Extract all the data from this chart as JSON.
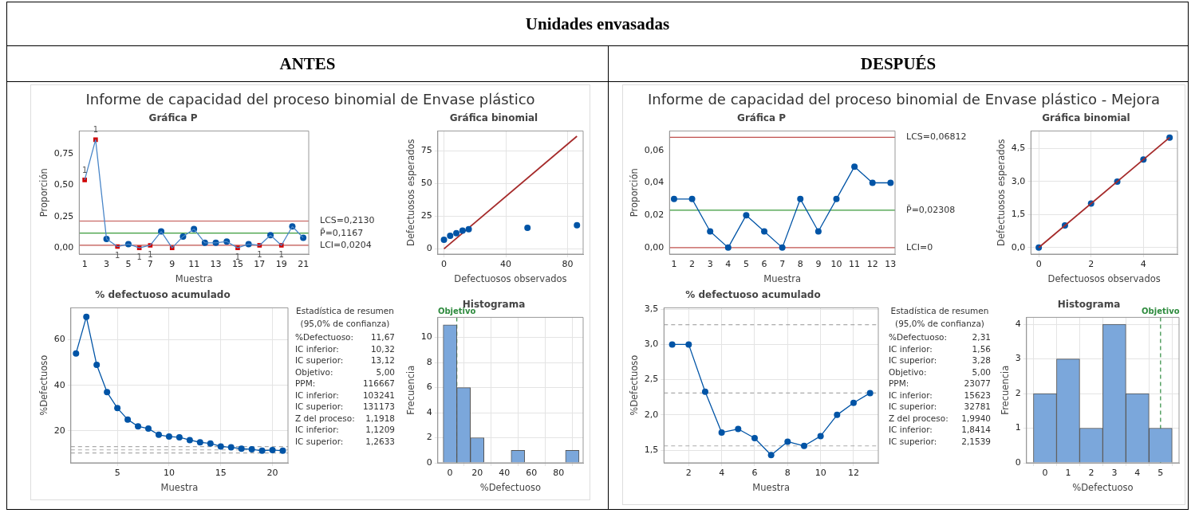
{
  "chart_data": [
    {
      "type": "other",
      "title": "Unidades envasadas",
      "annotations": [
        "ANTES",
        "DESPUÉS",
        "Informe de capacidad del proceso binomial de Envase plástico",
        "Informe de capacidad del proceso binomial de Envase plástico - Mejora"
      ]
    },
    {
      "type": "line",
      "title": "Gráfica P",
      "xlabel": "Muestra",
      "ylabel": "Proporción",
      "x": [
        1,
        2,
        3,
        4,
        5,
        6,
        7,
        8,
        9,
        10,
        11,
        12,
        13,
        14,
        15,
        16,
        17,
        18,
        19,
        20,
        21
      ],
      "series": [
        {
          "color": "#4a86c8",
          "marker": "none",
          "values": [
            0.54,
            0.86,
            0.07,
            0.01,
            0.03,
            0,
            0.02,
            0.13,
            0,
            0.09,
            0.15,
            0.04,
            0.04,
            0.05,
            0,
            0.03,
            0.02,
            0.1,
            0.02,
            0.17,
            0.08
          ]
        },
        {
          "type": "scatter",
          "color": "#0054a6",
          "marker": "circle",
          "x": [
            3,
            5,
            8,
            10,
            11,
            12,
            13,
            14,
            16,
            18,
            20,
            21
          ],
          "values": [
            0.07,
            0.03,
            0.13,
            0.09,
            0.15,
            0.04,
            0.04,
            0.05,
            0.03,
            0.1,
            0.17,
            0.08
          ]
        },
        {
          "type": "scatter",
          "color": "#d00000",
          "marker": "square",
          "x": [
            1,
            2,
            4,
            6,
            7,
            9,
            15,
            17,
            19
          ],
          "values": [
            0.54,
            0.86,
            0.01,
            0,
            0.02,
            0,
            0,
            0.02,
            0.02
          ]
        }
      ],
      "xlim": [
        0.5,
        21.5
      ],
      "xticks": [
        1,
        3,
        5,
        7,
        9,
        11,
        13,
        15,
        17,
        19,
        21
      ],
      "ylim": [
        -0.05,
        0.93
      ],
      "yticks": [
        {
          "value": 0,
          "label": "0,00"
        },
        {
          "value": 0.25,
          "label": "0,25"
        },
        {
          "value": 0.5,
          "label": "0,50"
        },
        {
          "value": 0.75,
          "label": "0,75"
        }
      ],
      "ref_lines": [
        {
          "axis": "y",
          "value": 0.213,
          "label": "LCS=0,2130",
          "color": "#c0504d"
        },
        {
          "axis": "y",
          "value": 0.1167,
          "label": "P̄=0,1167",
          "color": "#3a9a3a"
        },
        {
          "axis": "y",
          "value": 0.0204,
          "label": "LCI=0,0204",
          "color": "#c0504d"
        }
      ],
      "annotations": [
        {
          "text": "1",
          "x": 1,
          "y": 0.54
        },
        {
          "text": "1",
          "x": 2,
          "y": 0.86
        },
        {
          "text": "1",
          "x": 4,
          "y": 0.01
        },
        {
          "text": "1",
          "x": 6,
          "y": 0
        },
        {
          "text": "1",
          "x": 7,
          "y": 0.02
        },
        {
          "text": "1",
          "x": 15,
          "y": 0
        },
        {
          "text": "1",
          "x": 17,
          "y": 0.02
        },
        {
          "text": "1",
          "x": 19,
          "y": 0.02
        }
      ],
      "grid": false,
      "legend": false
    },
    {
      "type": "scatter",
      "title": "Gráfica binomial",
      "xlabel": "Defectuosos observados",
      "ylabel": "Defectuosos esperados",
      "series": [
        {
          "color": "#0054a6",
          "marker": "circle",
          "x": [
            0,
            4,
            8,
            12,
            16,
            54,
            86
          ],
          "values": [
            7,
            10,
            12,
            14,
            15,
            16,
            18
          ]
        },
        {
          "type": "line",
          "color": "#a52a2a",
          "marker": "none",
          "x": [
            0,
            86
          ],
          "values": [
            0,
            86
          ]
        }
      ],
      "xlim": [
        -4,
        90
      ],
      "xticks": [
        0,
        40,
        80
      ],
      "ylim": [
        -4,
        90
      ],
      "yticks": [
        0,
        25,
        50,
        75
      ],
      "grid": true,
      "legend": false
    },
    {
      "type": "line",
      "title": "% defectuoso acumulado",
      "xlabel": "Muestra",
      "ylabel": "%Defectuoso",
      "x": [
        1,
        2,
        3,
        4,
        5,
        6,
        7,
        8,
        9,
        10,
        11,
        12,
        13,
        14,
        15,
        16,
        17,
        18,
        19,
        20,
        21
      ],
      "series": [
        {
          "color": "#0054a6",
          "marker": "circle",
          "values": [
            54,
            70,
            49,
            37,
            30,
            25,
            22,
            21,
            18.3,
            17.5,
            17.2,
            16,
            15,
            14.5,
            13.2,
            12.8,
            12.2,
            11.9,
            11.3,
            11.6,
            11.3
          ]
        }
      ],
      "xlim": [
        0.5,
        21.5
      ],
      "xticks": [
        5,
        10,
        15,
        20
      ],
      "ylim": [
        6,
        74
      ],
      "yticks": [
        20,
        40,
        60
      ],
      "ref_lines": [
        {
          "axis": "y",
          "value": 10.32,
          "color": "#aaaaaa",
          "line_style": "dashed"
        },
        {
          "axis": "y",
          "value": 11.67,
          "color": "#aaaaaa",
          "line_style": "dashed"
        },
        {
          "axis": "y",
          "value": 13.12,
          "color": "#aaaaaa",
          "line_style": "dashed"
        }
      ],
      "grid": true,
      "legend": false
    },
    {
      "type": "other",
      "title": "Estadística de resumen",
      "subtitle": "(95,0% de confianza)",
      "annotations": [
        "%Defectuoso: 11,67",
        "IC inferior: 10,32",
        "IC superior: 13,12",
        "Objetivo: 5,00",
        "PPM: 116667",
        "IC inferior: 103241",
        "IC superior: 131173",
        "Z del proceso: 1,1918",
        "IC inferior: 1,1209",
        "IC superior: 1,2633"
      ]
    },
    {
      "type": "histogram",
      "title": "Histograma",
      "xlabel": "%Defectuoso",
      "ylabel": "Frecuencia",
      "color": "#7ba7db",
      "bins": [
        -5,
        5,
        15,
        25,
        35,
        45,
        55,
        65,
        75,
        85,
        95
      ],
      "values": [
        11,
        6,
        2,
        0,
        0,
        1,
        0,
        0,
        0,
        1
      ],
      "xlim": [
        -9,
        98
      ],
      "xticks": [
        0,
        20,
        40,
        60,
        80
      ],
      "ylim": [
        0,
        11.6
      ],
      "yticks": [
        0,
        2,
        4,
        6,
        8,
        10
      ],
      "ref_lines": [
        {
          "axis": "x",
          "value": 5,
          "label": "Objetivo",
          "color": "#2e8b3e",
          "line_style": "dashed"
        }
      ],
      "grid": true,
      "legend": false
    },
    {
      "type": "line",
      "title": "Gráfica P",
      "xlabel": "Muestra",
      "ylabel": "Proporción",
      "x": [
        1,
        2,
        3,
        4,
        5,
        6,
        7,
        8,
        9,
        10,
        11,
        12,
        13
      ],
      "series": [
        {
          "color": "#0054a6",
          "marker": "circle",
          "values": [
            0.03,
            0.03,
            0.01,
            0,
            0.02,
            0.01,
            0,
            0.03,
            0.01,
            0.03,
            0.05,
            0.04,
            0.04
          ]
        }
      ],
      "xlim": [
        0.75,
        13.25
      ],
      "xticks": [
        1,
        2,
        3,
        4,
        5,
        6,
        7,
        8,
        9,
        10,
        11,
        12,
        13
      ],
      "ylim": [
        -0.004,
        0.072
      ],
      "yticks": [
        {
          "value": 0,
          "label": "0,00"
        },
        {
          "value": 0.02,
          "label": "0,02"
        },
        {
          "value": 0.04,
          "label": "0,04"
        },
        {
          "value": 0.06,
          "label": "0,06"
        }
      ],
      "ref_lines": [
        {
          "axis": "y",
          "value": 0.06812,
          "label": "LCS=0,06812",
          "color": "#c0504d"
        },
        {
          "axis": "y",
          "value": 0.02308,
          "label": "P̄=0,02308",
          "color": "#3a9a3a"
        },
        {
          "axis": "y",
          "value": 0,
          "label": "LCI=0",
          "color": "#c0504d"
        }
      ],
      "grid": false,
      "legend": false
    },
    {
      "type": "scatter",
      "title": "Gráfica binomial",
      "xlabel": "Defectuosos observados",
      "ylabel": "Defectuosos esperados",
      "series": [
        {
          "type": "line",
          "color": "#a52a2a",
          "marker": "none",
          "x": [
            0,
            5
          ],
          "values": [
            0,
            5
          ]
        },
        {
          "color": "#0054a6",
          "marker": "circle",
          "x": [
            0,
            1,
            2,
            3,
            4,
            5
          ],
          "values": [
            0,
            1,
            2,
            3,
            4,
            5
          ]
        }
      ],
      "xlim": [
        -0.3,
        5.3
      ],
      "xticks": [
        0,
        2,
        4
      ],
      "ylim": [
        -0.3,
        5.3
      ],
      "yticks": [
        {
          "value": 0,
          "label": "0,0"
        },
        {
          "value": 1.5,
          "label": "1,5"
        },
        {
          "value": 3,
          "label": "3,0"
        },
        {
          "value": 4.5,
          "label": "4,5"
        }
      ],
      "grid": true,
      "legend": false
    },
    {
      "type": "line",
      "title": "% defectuoso acumulado",
      "xlabel": "Muestra",
      "ylabel": "%Defectuoso",
      "x": [
        1,
        2,
        3,
        4,
        5,
        6,
        7,
        8,
        9,
        10,
        11,
        12,
        13
      ],
      "series": [
        {
          "color": "#0054a6",
          "marker": "circle",
          "values": [
            3.0,
            3.0,
            2.33,
            1.75,
            1.8,
            1.67,
            1.43,
            1.62,
            1.56,
            1.7,
            2.0,
            2.17,
            2.31
          ]
        }
      ],
      "xlim": [
        0.5,
        13.5
      ],
      "xticks": [
        2,
        4,
        6,
        8,
        10,
        12
      ],
      "ylim": [
        1.32,
        3.52
      ],
      "yticks": [
        {
          "value": 1.5,
          "label": "1,5"
        },
        {
          "value": 2,
          "label": "2,0"
        },
        {
          "value": 2.5,
          "label": "2,5"
        },
        {
          "value": 3,
          "label": "3,0"
        },
        {
          "value": 3.5,
          "label": "3,5"
        }
      ],
      "ref_lines": [
        {
          "axis": "y",
          "value": 1.56,
          "color": "#aaaaaa",
          "line_style": "dashed"
        },
        {
          "axis": "y",
          "value": 2.31,
          "color": "#aaaaaa",
          "line_style": "dashed"
        },
        {
          "axis": "y",
          "value": 3.28,
          "color": "#aaaaaa",
          "line_style": "dashed"
        }
      ],
      "grid": true,
      "legend": false
    },
    {
      "type": "other",
      "title": "Estadística de resumen",
      "subtitle": "(95,0% de confianza)",
      "annotations": [
        "%Defectuoso: 2,31",
        "IC inferior: 1,56",
        "IC superior: 3,28",
        "Objetivo: 5,00",
        "PPM: 23077",
        "IC inferior: 15623",
        "IC superior: 32781",
        "Z del proceso: 1,9940",
        "IC inferior: 1,8414",
        "IC superior: 2,1539"
      ]
    },
    {
      "type": "histogram",
      "title": "Histograma",
      "xlabel": "%Defectuoso",
      "ylabel": "Frecuencia",
      "color": "#7ba7db",
      "bins": [
        -0.5,
        0.5,
        1.5,
        2.5,
        3.5,
        4.5,
        5.5
      ],
      "values": [
        2,
        3,
        1,
        4,
        2,
        1
      ],
      "xlim": [
        -0.8,
        5.8
      ],
      "xticks": [
        0,
        1,
        2,
        3,
        4,
        5
      ],
      "ylim": [
        0,
        4.2
      ],
      "yticks": [
        0,
        1,
        2,
        3,
        4
      ],
      "ref_lines": [
        {
          "axis": "x",
          "value": 5,
          "label": "Objetivo",
          "color": "#2e8b3e",
          "line_style": "dashed"
        }
      ],
      "grid": true,
      "legend": false
    }
  ]
}
